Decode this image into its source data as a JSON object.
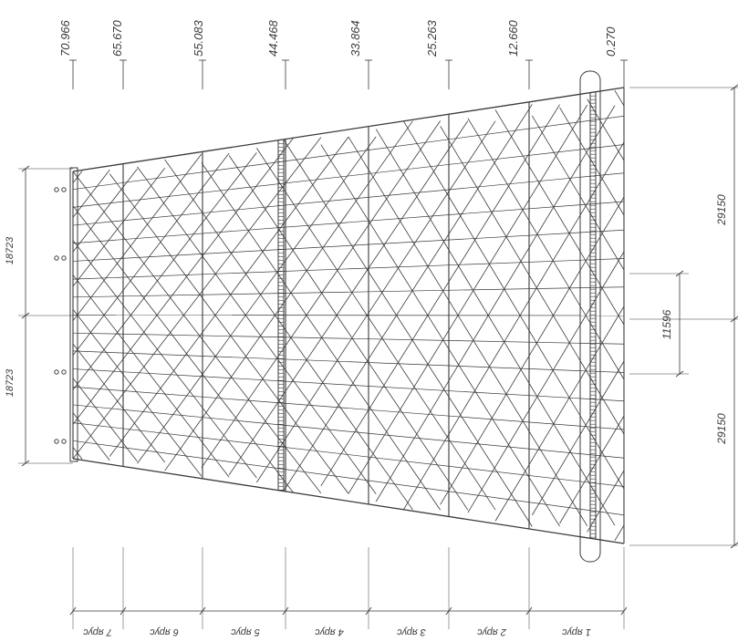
{
  "elevations": [
    "70.966",
    "65.670",
    "55.083",
    "44.468",
    "33.864",
    "25.263",
    "12.660",
    "0.270"
  ],
  "tiers": [
    "7 ярус",
    "6 ярус",
    "5 ярус",
    "4 ярус",
    "3 ярус",
    "2 ярус",
    "1 ярус"
  ],
  "top_dimensions": [
    "18723",
    "18723"
  ],
  "bottom_dimensions": [
    "29150",
    "11596",
    "29150"
  ],
  "colors": {
    "ink": "#3a3a3a",
    "background": "#ffffff"
  }
}
